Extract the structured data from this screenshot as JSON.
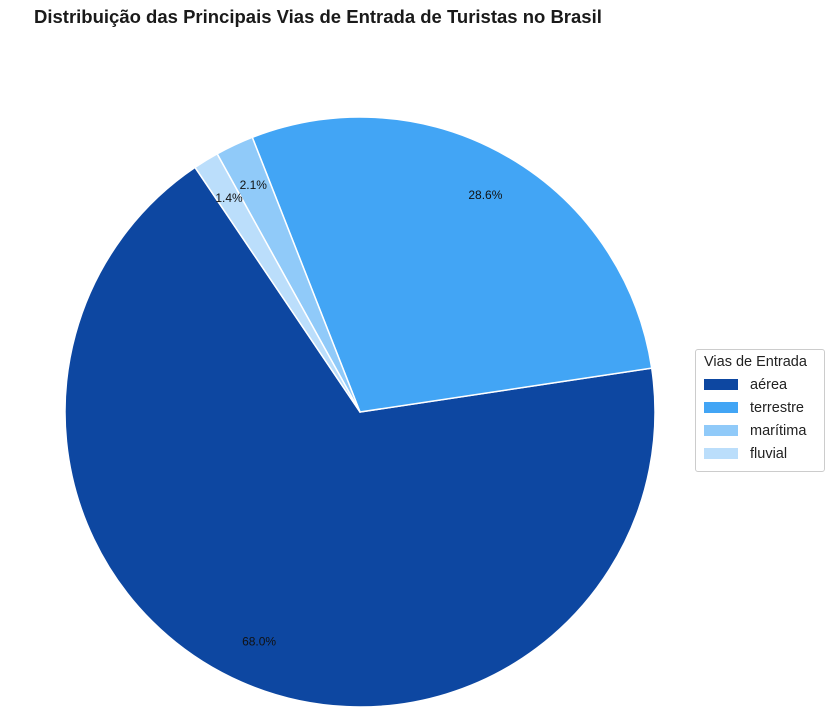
{
  "chart_data": {
    "type": "pie",
    "title": "Distribuição das Principais Vias de Entrada de Turistas no Brasil",
    "labels": [
      "aérea",
      "terrestre",
      "marítima",
      "fluvial"
    ],
    "values": [
      68.0,
      28.6,
      2.1,
      1.4
    ],
    "value_labels": [
      "68.0%",
      "28.6%",
      "2.1%",
      "1.4%"
    ],
    "colors": [
      "#0d47a1",
      "#42a5f5",
      "#90caf9",
      "#bbdefb"
    ],
    "legend_title": "Vias de Entrada",
    "legend_position": "right"
  }
}
